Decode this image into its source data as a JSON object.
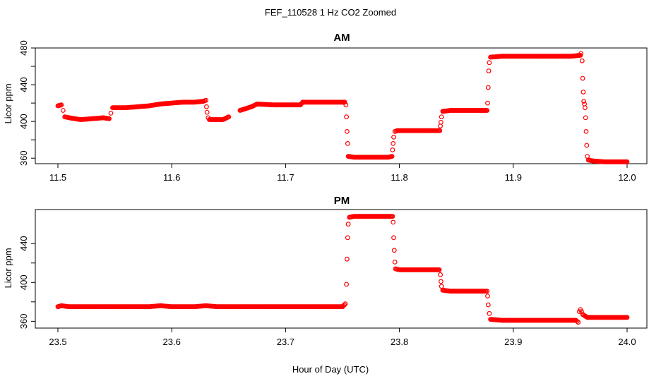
{
  "title": "FEF_110528  1 Hz CO2 Zoomed",
  "xlabel": "Hour of Day (UTC)",
  "chart_data": [
    {
      "type": "scatter",
      "title": "AM",
      "ylabel": "Licor ppm",
      "xlim": [
        11.5,
        12.0
      ],
      "ylim": [
        354,
        480
      ],
      "xticks": [
        "11.5",
        "11.6",
        "11.7",
        "11.8",
        "11.9",
        "12.0"
      ],
      "yticks": [
        "360",
        "400",
        "440",
        "480"
      ],
      "color": "#ff0000",
      "series": [
        {
          "points": [
            [
              11.5,
              417
            ],
            [
              11.503,
              418
            ],
            [
              11.5045,
              412
            ],
            [
              11.506,
              405
            ],
            [
              11.51,
              404
            ],
            [
              11.52,
              402
            ],
            [
              11.53,
              403
            ],
            [
              11.54,
              404
            ],
            [
              11.545,
              403
            ],
            [
              11.5465,
              409
            ],
            [
              11.548,
              415
            ],
            [
              11.56,
              415
            ],
            [
              11.57,
              416
            ],
            [
              11.58,
              417
            ],
            [
              11.59,
              419
            ],
            [
              11.6,
              420
            ],
            [
              11.61,
              421
            ],
            [
              11.62,
              421
            ],
            [
              11.628,
              422
            ],
            [
              11.63,
              423
            ],
            [
              11.6305,
              416
            ],
            [
              11.631,
              410
            ],
            [
              11.632,
              404
            ],
            [
              11.633,
              402
            ],
            [
              11.64,
              402
            ],
            [
              11.645,
              402
            ],
            [
              11.65,
              405
            ],
            [
              11.66,
              412
            ],
            [
              11.67,
              416
            ],
            [
              11.675,
              419
            ],
            [
              11.69,
              418
            ],
            [
              11.7,
              418
            ],
            [
              11.713,
              418
            ],
            [
              11.715,
              421
            ],
            [
              11.73,
              421
            ],
            [
              11.74,
              421
            ],
            [
              11.752,
              421
            ],
            [
              11.753,
              418
            ],
            [
              11.7535,
              405
            ],
            [
              11.754,
              389
            ],
            [
              11.7545,
              376
            ],
            [
              11.755,
              362
            ],
            [
              11.76,
              361
            ],
            [
              11.77,
              361
            ],
            [
              11.78,
              361
            ],
            [
              11.79,
              361
            ],
            [
              11.7935,
              362
            ],
            [
              11.794,
              369
            ],
            [
              11.7945,
              376
            ],
            [
              11.795,
              383
            ],
            [
              11.796,
              389
            ],
            [
              11.798,
              390
            ],
            [
              11.81,
              390
            ],
            [
              11.82,
              390
            ],
            [
              11.83,
              390
            ],
            [
              11.8355,
              390
            ],
            [
              11.836,
              395
            ],
            [
              11.8365,
              399
            ],
            [
              11.837,
              405
            ],
            [
              11.838,
              411
            ],
            [
              11.845,
              412
            ],
            [
              11.86,
              412
            ],
            [
              11.87,
              412
            ],
            [
              11.877,
              412
            ],
            [
              11.8775,
              420
            ],
            [
              11.878,
              437
            ],
            [
              11.8785,
              455
            ],
            [
              11.879,
              464
            ],
            [
              11.88,
              470
            ],
            [
              11.89,
              471
            ],
            [
              11.9,
              471
            ],
            [
              11.91,
              471
            ],
            [
              11.92,
              471
            ],
            [
              11.93,
              471
            ],
            [
              11.94,
              471
            ],
            [
              11.95,
              471
            ],
            [
              11.959,
              472
            ],
            [
              11.9595,
              474
            ],
            [
              11.9605,
              466
            ],
            [
              11.961,
              447
            ],
            [
              11.9615,
              432
            ],
            [
              11.962,
              422
            ],
            [
              11.9625,
              419
            ],
            [
              11.963,
              415
            ],
            [
              11.9635,
              404
            ],
            [
              11.964,
              389
            ],
            [
              11.9645,
              374
            ],
            [
              11.965,
              362
            ],
            [
              11.966,
              358
            ],
            [
              11.97,
              357
            ],
            [
              11.98,
              356
            ],
            [
              11.99,
              356
            ],
            [
              12.0,
              356
            ]
          ]
        }
      ]
    },
    {
      "type": "scatter",
      "title": "PM",
      "ylabel": "Licor ppm",
      "xlim": [
        23.5,
        24.0
      ],
      "ylim": [
        353,
        475
      ],
      "xticks": [
        "23.5",
        "23.6",
        "23.7",
        "23.8",
        "23.9",
        "24.0"
      ],
      "yticks": [
        "360",
        "400",
        "440"
      ],
      "color": "#ff0000",
      "series": [
        {
          "points": [
            [
              23.5,
              375
            ],
            [
              23.503,
              376
            ],
            [
              23.51,
              375
            ],
            [
              23.52,
              375
            ],
            [
              23.53,
              375
            ],
            [
              23.54,
              375
            ],
            [
              23.55,
              375
            ],
            [
              23.56,
              375
            ],
            [
              23.57,
              375
            ],
            [
              23.58,
              375
            ],
            [
              23.59,
              376
            ],
            [
              23.6,
              375
            ],
            [
              23.61,
              375
            ],
            [
              23.62,
              375
            ],
            [
              23.63,
              376
            ],
            [
              23.64,
              375
            ],
            [
              23.65,
              375
            ],
            [
              23.66,
              375
            ],
            [
              23.67,
              375
            ],
            [
              23.68,
              375
            ],
            [
              23.69,
              375
            ],
            [
              23.7,
              375
            ],
            [
              23.71,
              375
            ],
            [
              23.72,
              375
            ],
            [
              23.73,
              375
            ],
            [
              23.74,
              375
            ],
            [
              23.75,
              375
            ],
            [
              23.7525,
              378
            ],
            [
              23.7535,
              398
            ],
            [
              23.754,
              424
            ],
            [
              23.7545,
              446
            ],
            [
              23.755,
              460
            ],
            [
              23.756,
              467
            ],
            [
              23.76,
              468
            ],
            [
              23.77,
              468
            ],
            [
              23.78,
              468
            ],
            [
              23.79,
              468
            ],
            [
              23.794,
              468
            ],
            [
              23.7945,
              462
            ],
            [
              23.795,
              446
            ],
            [
              23.7955,
              433
            ],
            [
              23.796,
              421
            ],
            [
              23.7965,
              414
            ],
            [
              23.8,
              413
            ],
            [
              23.81,
              413
            ],
            [
              23.82,
              413
            ],
            [
              23.83,
              413
            ],
            [
              23.835,
              413
            ],
            [
              23.836,
              408
            ],
            [
              23.8365,
              401
            ],
            [
              23.837,
              396
            ],
            [
              23.838,
              392
            ],
            [
              23.845,
              391
            ],
            [
              23.855,
              391
            ],
            [
              23.865,
              391
            ],
            [
              23.875,
              391
            ],
            [
              23.877,
              391
            ],
            [
              23.8775,
              386
            ],
            [
              23.878,
              377
            ],
            [
              23.879,
              368
            ],
            [
              23.88,
              362
            ],
            [
              23.89,
              361
            ],
            [
              23.9,
              361
            ],
            [
              23.91,
              361
            ],
            [
              23.92,
              361
            ],
            [
              23.93,
              361
            ],
            [
              23.94,
              361
            ],
            [
              23.95,
              361
            ],
            [
              23.955,
              361
            ],
            [
              23.957,
              359
            ],
            [
              23.958,
              370
            ],
            [
              23.959,
              372
            ],
            [
              23.96,
              370
            ],
            [
              23.961,
              367
            ],
            [
              23.965,
              364
            ],
            [
              23.975,
              364
            ],
            [
              23.985,
              364
            ],
            [
              24.0,
              364
            ]
          ]
        }
      ]
    }
  ]
}
